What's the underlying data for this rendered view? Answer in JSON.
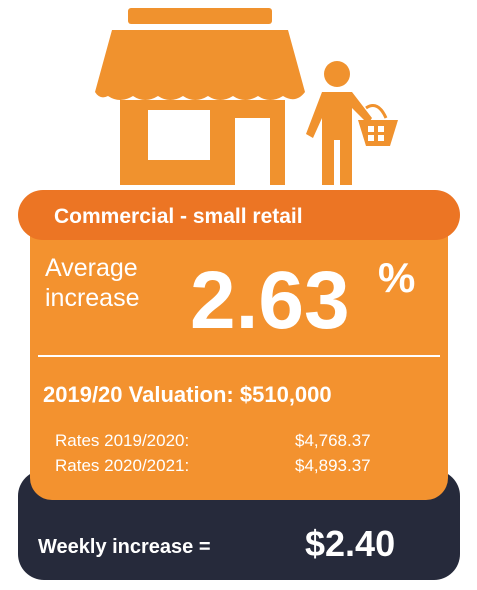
{
  "header": {
    "title": "Commercial - small retail"
  },
  "increase": {
    "label_lines": [
      "Average",
      "increase"
    ],
    "value": "2.63",
    "unit": "%"
  },
  "valuation": "2019/20 Valuation: $510,000",
  "rates": [
    [
      "Rates 2019/2020:",
      "$4,768.37"
    ],
    [
      "Rates 2020/2021:",
      "$4,893.37"
    ]
  ],
  "weekly": {
    "label": "Weekly increase =",
    "value": "$2.40"
  }
}
